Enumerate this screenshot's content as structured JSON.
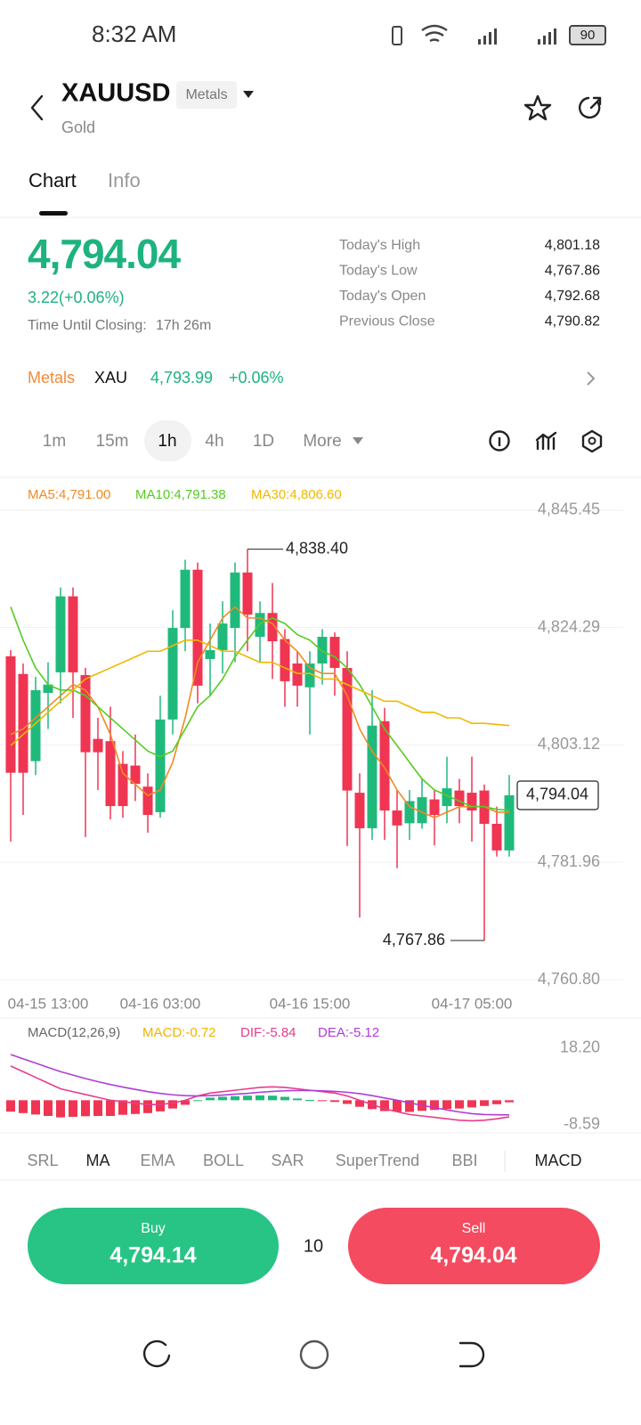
{
  "status_bar": {
    "time": "8:32 AM",
    "battery": "90"
  },
  "header": {
    "symbol": "XAUUSD",
    "tag": "Metals",
    "name": "Gold"
  },
  "tabs": [
    "Chart",
    "Info"
  ],
  "quote": {
    "price": "4,794.04",
    "change": "3.22(+0.06%)",
    "closing_label": "Time Until Closing:",
    "closing_value": "17h 26m",
    "stats": [
      {
        "label": "Today's High",
        "value": "4,801.18"
      },
      {
        "label": "Today's Low",
        "value": "4,767.86"
      },
      {
        "label": "Today's Open",
        "value": "4,792.68"
      },
      {
        "label": "Previous Close",
        "value": "4,790.82"
      }
    ]
  },
  "related": {
    "category": "Metals",
    "symbol": "XAU",
    "price": "4,793.99",
    "change": "+0.06%"
  },
  "intervals": [
    "1m",
    "15m",
    "1h",
    "4h",
    "1D",
    "More"
  ],
  "chart_data": [
    {
      "type": "candlestick",
      "categories": [
        null,
        null,
        null,
        "04-15 13:00",
        null,
        null,
        null,
        null,
        null,
        null,
        null,
        null,
        "04-16 03:00",
        null,
        null,
        null,
        null,
        null,
        null,
        null,
        null,
        null,
        null,
        null,
        "04-16 15:00",
        null,
        null,
        null,
        null,
        null,
        null,
        null,
        null,
        null,
        null,
        null,
        null,
        "04-17 05:00",
        null,
        null,
        null
      ],
      "open": [
        4819.1,
        4815.9,
        4800.2,
        4812.5,
        4816.2,
        4829.9,
        4815.7,
        4804.2,
        4803.8,
        4799.7,
        4799.4,
        4795.6,
        4791.0,
        4807.7,
        4824.2,
        4834.7,
        4818.6,
        4820.2,
        4824.2,
        4834.2,
        4822.6,
        4826.9,
        4822.2,
        4817.8,
        4813.5,
        4817.8,
        4822.6,
        4817.0,
        4794.5,
        4788.1,
        4807.4,
        4791.3,
        4789.0,
        4789.0,
        4793.3,
        4792.1,
        4794.9,
        4794.5,
        4794.9,
        4788.9,
        4784.1
      ],
      "high": [
        4820.2,
        4817.8,
        4815.4,
        4818.0,
        4831.5,
        4831.5,
        4817.0,
        4808.0,
        4810.0,
        4802.0,
        4805.0,
        4798.0,
        4812.0,
        4827.4,
        4836.5,
        4836.0,
        4825.0,
        4829.0,
        4836.0,
        4838.4,
        4829.0,
        4832.3,
        4824.0,
        4820.0,
        4820.0,
        4824.0,
        4823.4,
        4820.0,
        4798.0,
        4813.0,
        4809.8,
        4795.0,
        4795.0,
        4797.0,
        4795.0,
        4801.0,
        4797.0,
        4801.0,
        4796.0,
        4792.0,
        4797.7
      ],
      "low": [
        4785.7,
        4790.5,
        4797.7,
        4806.0,
        4810.6,
        4808.0,
        4786.5,
        4795.0,
        4789.7,
        4790.0,
        4793.0,
        4787.3,
        4790.0,
        4805.0,
        4820.0,
        4810.6,
        4812.0,
        4816.0,
        4818.0,
        4820.0,
        4818.0,
        4815.0,
        4810.0,
        4810.0,
        4805.0,
        4814.0,
        4812.0,
        4784.9,
        4772.0,
        4786.0,
        4786.0,
        4780.9,
        4786.0,
        4788.0,
        4785.0,
        4789.0,
        4789.0,
        4785.7,
        4767.86,
        4783.0,
        4783.0
      ],
      "close": [
        4798.1,
        4798.1,
        4813.0,
        4814.0,
        4829.9,
        4816.2,
        4801.8,
        4801.8,
        4792.1,
        4792.1,
        4796.1,
        4790.5,
        4807.7,
        4824.2,
        4834.7,
        4813.8,
        4820.2,
        4825.0,
        4834.2,
        4826.6,
        4826.9,
        4821.8,
        4814.6,
        4813.8,
        4817.8,
        4822.6,
        4817.0,
        4794.9,
        4788.1,
        4806.6,
        4791.3,
        4788.6,
        4793.0,
        4793.7,
        4790.5,
        4795.3,
        4792.1,
        4791.3,
        4788.9,
        4784.1,
        4794.04
      ],
      "up_color": "#20b97c",
      "down_color": "#ef3552",
      "series": [
        {
          "name": "MA5:4,791.00",
          "color": "#f08a24",
          "values": [
            4805,
            4806,
            4808,
            4810,
            4812,
            4814,
            4813,
            4810,
            4805,
            4798,
            4796,
            4794,
            4795,
            4800,
            4808,
            4818,
            4822,
            4826,
            4828,
            4826,
            4826,
            4825,
            4822,
            4820,
            4817,
            4816,
            4816,
            4812,
            4806,
            4802,
            4799,
            4795,
            4792,
            4791,
            4790,
            4791,
            4792,
            4792,
            4792,
            4791,
            4791
          ]
        },
        {
          "name": "MA10:4,791.38",
          "color": "#55cc22",
          "values": [
            4828,
            4822,
            4817,
            4814,
            4813,
            4813,
            4812,
            4810,
            4808,
            4806,
            4804,
            4802,
            4801,
            4802,
            4806,
            4810,
            4812,
            4815,
            4819,
            4822,
            4825,
            4826,
            4825,
            4823,
            4822,
            4820,
            4819,
            4817,
            4814,
            4810,
            4806,
            4803,
            4800,
            4797,
            4795,
            4794,
            4793,
            4792,
            4792,
            4791.5,
            4791.38
          ]
        },
        {
          "name": "MA30:4,806.60",
          "color": "#f0b800",
          "values": [
            4803,
            4805,
            4807,
            4809,
            4811,
            4813,
            4815,
            4816,
            4817,
            4818,
            4819,
            4820,
            4820,
            4821,
            4822,
            4822,
            4821,
            4820,
            4820,
            4819,
            4818,
            4818,
            4817,
            4816,
            4816,
            4815,
            4815,
            4814,
            4813,
            4812,
            4811,
            4811,
            4810,
            4809,
            4809,
            4808,
            4808,
            4807,
            4807,
            4806.8,
            4806.6
          ]
        }
      ],
      "ylim": [
        4759.2,
        4850.7
      ],
      "yticks": [
        {
          "value": 4845.45,
          "label": "4,845.45"
        },
        {
          "value": 4824.29,
          "label": "4,824.29"
        },
        {
          "value": 4803.12,
          "label": "4,803.12"
        },
        {
          "value": 4781.96,
          "label": "4,781.96"
        },
        {
          "value": 4760.8,
          "label": "4,760.80"
        }
      ],
      "grid": true,
      "high_marker": {
        "value": 4838.4,
        "label": "4,838.40"
      },
      "low_marker": {
        "value": 4767.86,
        "label": "4,767.86"
      },
      "last_price": {
        "value": 4794.04,
        "label": "4,794.04"
      }
    },
    {
      "type": "macd",
      "title": "MACD(12,26,9)",
      "up_color": "#20b97c",
      "down_color": "#ef3552",
      "series": [
        {
          "name": "MACD:-0.72",
          "color": "#f0b400",
          "kind": "bar",
          "values": [
            -4,
            -4.5,
            -5,
            -5.5,
            -6,
            -5.8,
            -5.6,
            -5.5,
            -5.5,
            -5.1,
            -4.8,
            -4.5,
            -3.9,
            -2.9,
            -1.6,
            0,
            0.9,
            1.2,
            1.4,
            1.6,
            1.7,
            1.6,
            1.2,
            0.6,
            0.1,
            -0.3,
            -0.6,
            -1.3,
            -2.3,
            -3.1,
            -3.8,
            -4,
            -4.1,
            -3.7,
            -3.4,
            -3.1,
            -2.9,
            -2.5,
            -2,
            -1.4,
            -0.72
          ]
        },
        {
          "name": "DIF:-5.84",
          "color": "#e83c8c",
          "kind": "line",
          "values": [
            12,
            10,
            8,
            6,
            4,
            3,
            2,
            1,
            0,
            -0.5,
            -1,
            -1.5,
            -1.5,
            -1,
            0,
            1.5,
            2.5,
            3,
            3.5,
            4,
            4.5,
            4.7,
            4.5,
            4,
            3.5,
            3,
            2.5,
            1.5,
            0,
            -1.5,
            -3,
            -4,
            -5,
            -5.5,
            -6,
            -6.5,
            -7,
            -7.2,
            -7,
            -6.5,
            -5.84
          ]
        },
        {
          "name": "DEA:-5.12",
          "color": "#b03cd8",
          "kind": "line",
          "values": [
            16,
            14.5,
            13,
            11.5,
            10,
            8.8,
            7.6,
            6.5,
            5.5,
            4.6,
            3.8,
            3.0,
            2.4,
            1.9,
            1.6,
            1.5,
            1.6,
            1.8,
            2.1,
            2.4,
            2.8,
            3.1,
            3.3,
            3.4,
            3.4,
            3.3,
            3.1,
            2.8,
            2.3,
            1.6,
            0.8,
            0,
            -0.9,
            -1.8,
            -2.6,
            -3.4,
            -4.1,
            -4.7,
            -5.0,
            -5.1,
            -5.12
          ]
        }
      ],
      "ylim": [
        -10.8,
        26.6
      ],
      "yticks": [
        {
          "value": 18.2,
          "label": "18.20"
        },
        {
          "value": -8.59,
          "label": "-8.59"
        }
      ]
    }
  ],
  "indicators": [
    "SRL",
    "MA",
    "EMA",
    "BOLL",
    "SAR",
    "SuperTrend",
    "BBI",
    "MACD"
  ],
  "trade": {
    "buy_label": "Buy",
    "buy_price": "4,794.14",
    "quantity": "10",
    "sell_label": "Sell",
    "sell_price": "4,794.04"
  }
}
